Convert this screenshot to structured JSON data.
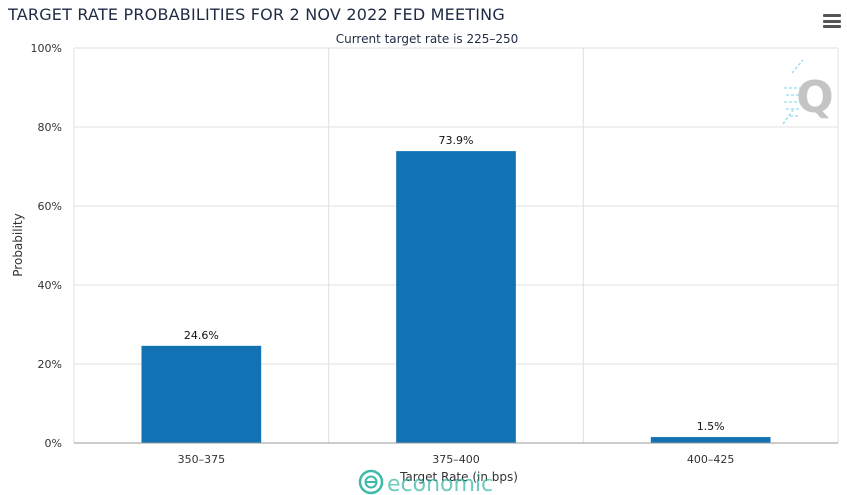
{
  "chart_data": {
    "type": "bar",
    "title": "TARGET RATE PROBABILITIES FOR 2 NOV 2022 FED MEETING",
    "subtitle": "Current target rate is 225–250",
    "xlabel": "Target Rate (in bps)",
    "ylabel": "Probability",
    "categories": [
      "350–375",
      "375–400",
      "400–425"
    ],
    "values": [
      24.6,
      73.9,
      1.5
    ],
    "data_labels": [
      "24.6%",
      "73.9%",
      "1.5%"
    ],
    "ylim": [
      0,
      100
    ],
    "yticks": [
      0,
      20,
      40,
      60,
      80,
      100
    ],
    "ytick_labels": [
      "0%",
      "20%",
      "40%",
      "60%",
      "80%",
      "100%"
    ],
    "grid": true,
    "legend": "none",
    "bar_color": "#1272b4"
  },
  "watermark": {
    "text": "economic",
    "color": "#27b3a0"
  },
  "icons": {
    "menu": "hamburger-menu-icon",
    "logo": "q-logo-icon"
  }
}
